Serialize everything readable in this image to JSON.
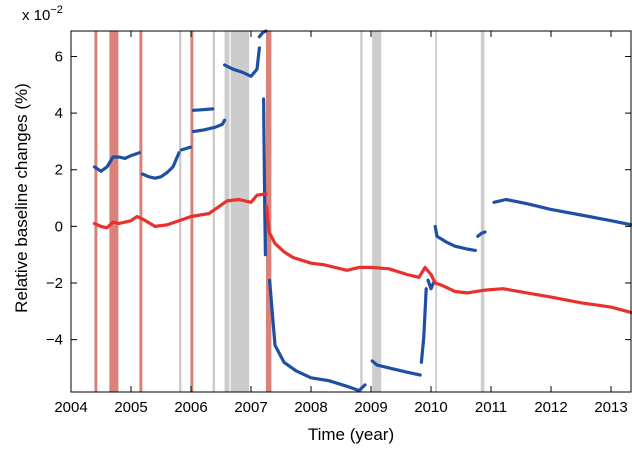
{
  "chart_data": {
    "type": "scatter",
    "title": "",
    "xlabel": "Time (year)",
    "ylabel": "Relative baseline changes (%)",
    "y_multiplier_label": {
      "base": "x 10",
      "exponent": "−2"
    },
    "xlim": [
      2004,
      2013.35
    ],
    "ylim": [
      -5.85,
      6.9
    ],
    "xticks": [
      2004,
      2005,
      2006,
      2007,
      2008,
      2009,
      2010,
      2011,
      2012,
      2013
    ],
    "xtick_labels": [
      "2004",
      "2005",
      "2006",
      "2007",
      "2008",
      "2009",
      "2010",
      "2011",
      "2012",
      "2013"
    ],
    "yticks": [
      6,
      4,
      2,
      0,
      -2,
      -4
    ],
    "ytick_labels": [
      "6",
      "4",
      "2",
      "0",
      "−2",
      "−4"
    ],
    "grid": false,
    "legend": "none",
    "colors": {
      "series_blue": "#1f4fa3",
      "series_red": "#e8302e",
      "band_red": "#d9827a",
      "band_gray": "#cccccc"
    },
    "shaded_bands": [
      {
        "color": "red",
        "x": [
          2004.39,
          2004.44
        ]
      },
      {
        "color": "red",
        "x": [
          2004.64,
          2004.79
        ]
      },
      {
        "color": "red",
        "x": [
          2005.14,
          2005.19
        ]
      },
      {
        "color": "gray",
        "x": [
          2005.8,
          2005.84
        ]
      },
      {
        "color": "red",
        "x": [
          2005.99,
          2006.04
        ]
      },
      {
        "color": "gray",
        "x": [
          2006.36,
          2006.4
        ]
      },
      {
        "color": "gray",
        "x": [
          2006.56,
          2006.64
        ]
      },
      {
        "color": "gray",
        "x": [
          2006.66,
          2006.97
        ]
      },
      {
        "color": "red",
        "x": [
          2007.25,
          2007.34
        ]
      },
      {
        "color": "gray",
        "x": [
          2008.82,
          2008.86
        ]
      },
      {
        "color": "gray",
        "x": [
          2009.02,
          2009.17
        ]
      },
      {
        "color": "gray",
        "x": [
          2010.07,
          2010.1
        ]
      },
      {
        "color": "gray",
        "x": [
          2010.83,
          2010.89
        ]
      }
    ],
    "series": [
      {
        "color": "blue",
        "segments": [
          {
            "x": [
              2004.39,
              2004.5,
              2004.6,
              2004.7,
              2004.8,
              2004.9,
              2005.0,
              2005.14
            ],
            "y": [
              2.1,
              1.95,
              2.1,
              2.45,
              2.45,
              2.4,
              2.5,
              2.6
            ]
          },
          {
            "x": [
              2005.19,
              2005.3,
              2005.4,
              2005.5,
              2005.6,
              2005.7,
              2005.8
            ],
            "y": [
              1.85,
              1.75,
              1.7,
              1.75,
              1.9,
              2.1,
              2.6
            ]
          },
          {
            "x": [
              2005.84,
              2005.92,
              2005.99
            ],
            "y": [
              2.7,
              2.75,
              2.8
            ]
          },
          {
            "x": [
              2006.04,
              2006.2,
              2006.36
            ],
            "y": [
              4.1,
              4.12,
              4.15
            ]
          },
          {
            "x": [
              2006.04,
              2006.2,
              2006.4,
              2006.52,
              2006.56
            ],
            "y": [
              3.35,
              3.4,
              3.5,
              3.6,
              3.75
            ]
          },
          {
            "x": [
              2006.56,
              2006.7,
              2006.85,
              2007.0,
              2007.1,
              2007.14
            ],
            "y": [
              5.7,
              5.55,
              5.45,
              5.3,
              5.55,
              6.3
            ]
          },
          {
            "x": [
              2007.14,
              2007.2,
              2007.25
            ],
            "y": [
              6.7,
              6.85,
              6.9
            ]
          },
          {
            "x": [
              2007.21,
              2007.22,
              2007.23,
              2007.24
            ],
            "y": [
              4.5,
              2.5,
              0.5,
              -1.0
            ]
          },
          {
            "x": [
              2007.31,
              2007.4,
              2007.55,
              2007.75,
              2008.0,
              2008.3,
              2008.6,
              2008.8,
              2008.9
            ],
            "y": [
              -1.9,
              -4.2,
              -4.8,
              -5.1,
              -5.35,
              -5.45,
              -5.65,
              -5.8,
              -5.6
            ]
          },
          {
            "x": [
              2009.02,
              2009.1,
              2009.3,
              2009.6,
              2009.82
            ],
            "y": [
              -4.75,
              -4.9,
              -5.0,
              -5.15,
              -5.25
            ]
          },
          {
            "x": [
              2009.84,
              2009.88,
              2009.92
            ],
            "y": [
              -4.8,
              -3.9,
              -2.2
            ]
          },
          {
            "x": [
              2009.95,
              2010.0,
              2010.04
            ],
            "y": [
              -1.9,
              -2.2,
              -2.0
            ]
          },
          {
            "x": [
              2010.07,
              2010.1,
              2010.25,
              2010.4,
              2010.6,
              2010.74
            ],
            "y": [
              0.0,
              -0.35,
              -0.55,
              -0.7,
              -0.8,
              -0.85
            ]
          },
          {
            "x": [
              2010.78,
              2010.84,
              2010.9
            ],
            "y": [
              -0.35,
              -0.25,
              -0.2
            ]
          },
          {
            "x": [
              2011.05,
              2011.25,
              2011.6,
              2012.0,
              2012.5,
              2013.0,
              2013.35
            ],
            "y": [
              0.85,
              0.95,
              0.8,
              0.6,
              0.4,
              0.2,
              0.05
            ]
          }
        ]
      },
      {
        "color": "red",
        "segments": [
          {
            "x": [
              2004.39,
              2004.5,
              2004.6,
              2004.7,
              2004.8,
              2005.0,
              2005.1,
              2005.2,
              2005.4,
              2005.6,
              2005.8,
              2006.0,
              2006.3,
              2006.6,
              2006.8,
              2007.0,
              2007.1,
              2007.25
            ],
            "y": [
              0.1,
              0.0,
              -0.05,
              0.15,
              0.1,
              0.2,
              0.35,
              0.25,
              0.0,
              0.05,
              0.2,
              0.35,
              0.45,
              0.9,
              0.95,
              0.85,
              1.1,
              1.15
            ]
          },
          {
            "x": [
              2007.26,
              2007.3,
              2007.4,
              2007.55,
              2007.7,
              2007.85,
              2008.0,
              2008.2,
              2008.4,
              2008.6,
              2008.8,
              2009.0,
              2009.3,
              2009.6,
              2009.8,
              2009.9,
              2010.0,
              2010.07,
              2010.2,
              2010.4,
              2010.6,
              2010.9,
              2011.2,
              2011.6,
              2012.0,
              2012.5,
              2013.0,
              2013.35
            ],
            "y": [
              0.7,
              -0.2,
              -0.6,
              -0.9,
              -1.1,
              -1.2,
              -1.3,
              -1.35,
              -1.45,
              -1.55,
              -1.45,
              -1.45,
              -1.5,
              -1.7,
              -1.8,
              -1.45,
              -1.7,
              -2.0,
              -2.1,
              -2.3,
              -2.35,
              -2.25,
              -2.2,
              -2.35,
              -2.5,
              -2.7,
              -2.85,
              -3.05
            ]
          }
        ]
      }
    ]
  }
}
